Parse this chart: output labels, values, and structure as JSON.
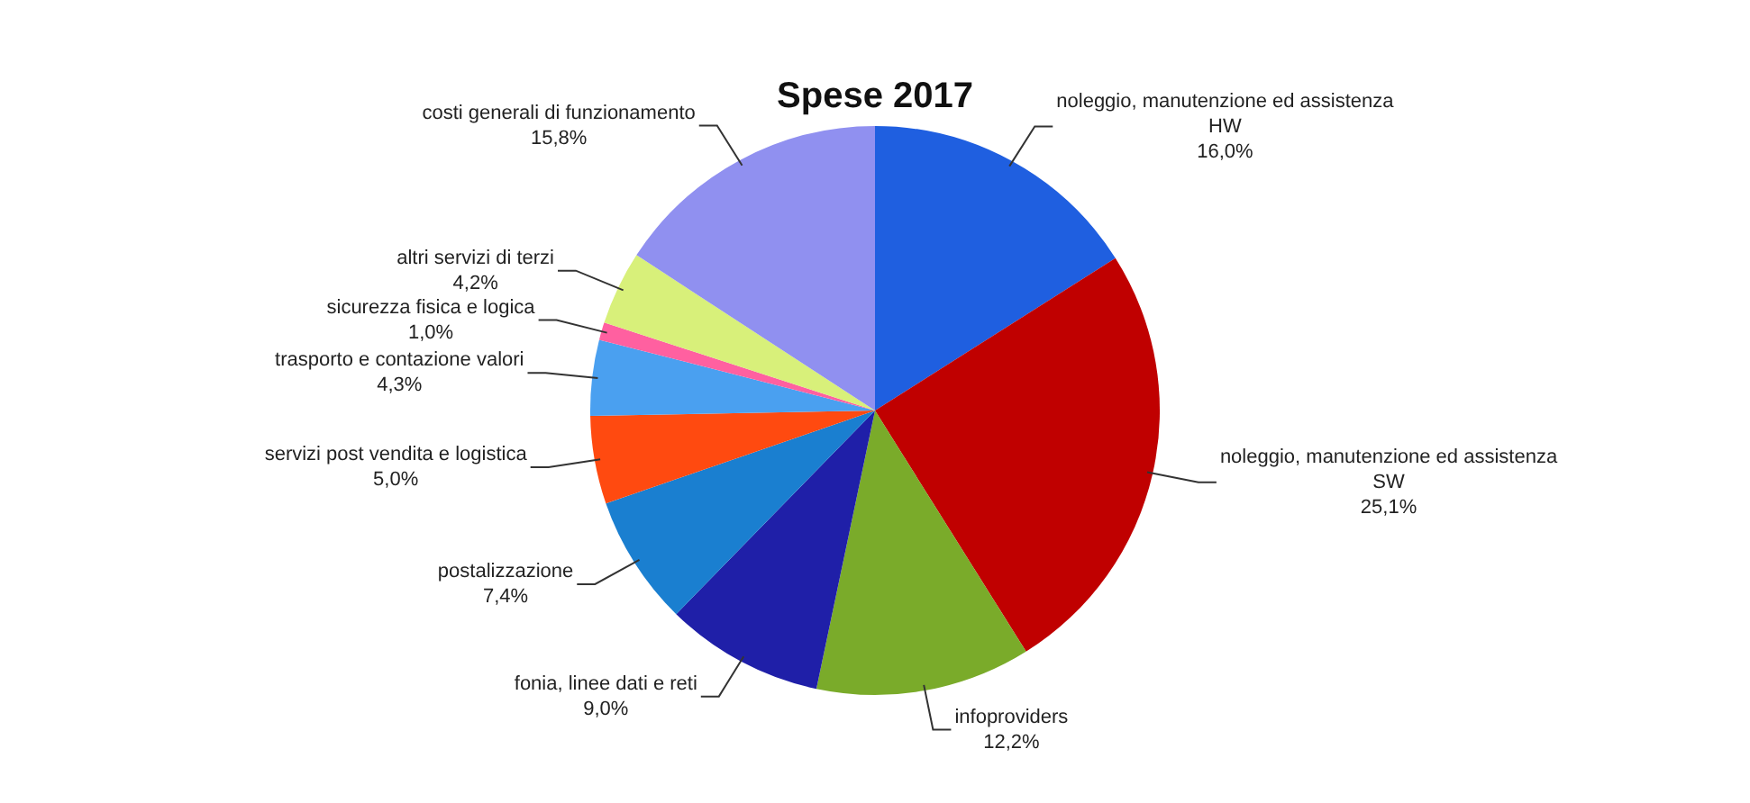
{
  "chart_data": {
    "type": "pie",
    "title": "Spese 2017",
    "categories": [
      "noleggio, manutenzione ed assistenza HW",
      "noleggio, manutenzione ed assistenza SW",
      "infoproviders",
      "fonia, linee dati e reti",
      "postalizzazione",
      "servizi post vendita e logistica",
      "trasporto e contazione valori",
      "sicurezza fisica e logica",
      "altri servizi di terzi",
      "costi generali di funzionamento"
    ],
    "values": [
      16.0,
      25.1,
      12.2,
      9.0,
      7.4,
      5.0,
      4.3,
      1.0,
      4.2,
      15.8
    ],
    "value_labels": [
      "16,0%",
      "25,1%",
      "12,2%",
      "9,0%",
      "7,4%",
      "5,0%",
      "4,3%",
      "1,0%",
      "4,2%",
      "15,8%"
    ],
    "colors": [
      "#1f5fe0",
      "#c00000",
      "#7aab2a",
      "#1f1fa8",
      "#1a7fd0",
      "#ff4a10",
      "#4aa0f0",
      "#ff60a0",
      "#d8f07a",
      "#9090f0"
    ],
    "legend": false
  }
}
